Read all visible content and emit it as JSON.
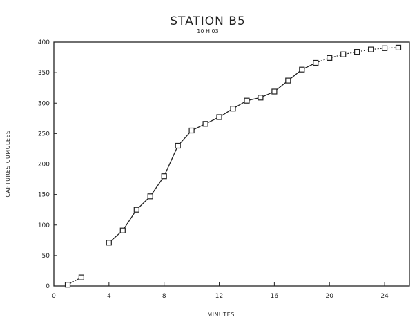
{
  "chart_data": {
    "type": "line",
    "title": "STATION B5",
    "subtitle": "10 H 03",
    "xlabel": "MINUTES",
    "ylabel": "CAPTURES CUMULEES",
    "xlim": [
      0,
      25.8
    ],
    "ylim": [
      0,
      400
    ],
    "x_ticks": [
      0,
      4,
      8,
      12,
      16,
      20,
      24
    ],
    "y_ticks": [
      0,
      50,
      100,
      150,
      200,
      250,
      300,
      350,
      400
    ],
    "grid": false,
    "series": [
      {
        "x": [
          1,
          2,
          4,
          5,
          6,
          7,
          8,
          9,
          10,
          11,
          12,
          13,
          14,
          15,
          16,
          17,
          18,
          19,
          20,
          21,
          22,
          23,
          24,
          25
        ],
        "y": [
          2,
          14,
          71,
          91,
          125,
          147,
          180,
          230,
          255,
          266,
          277,
          291,
          304,
          309,
          319,
          337,
          355,
          366,
          374,
          380,
          384,
          388,
          390,
          391
        ],
        "segments": [
          {
            "from": 0,
            "to": 1,
            "style": "dotted"
          },
          {
            "from": 2,
            "to": 17,
            "style": "solid"
          },
          {
            "from": 17,
            "to": 23,
            "style": "dotted"
          }
        ]
      }
    ]
  }
}
